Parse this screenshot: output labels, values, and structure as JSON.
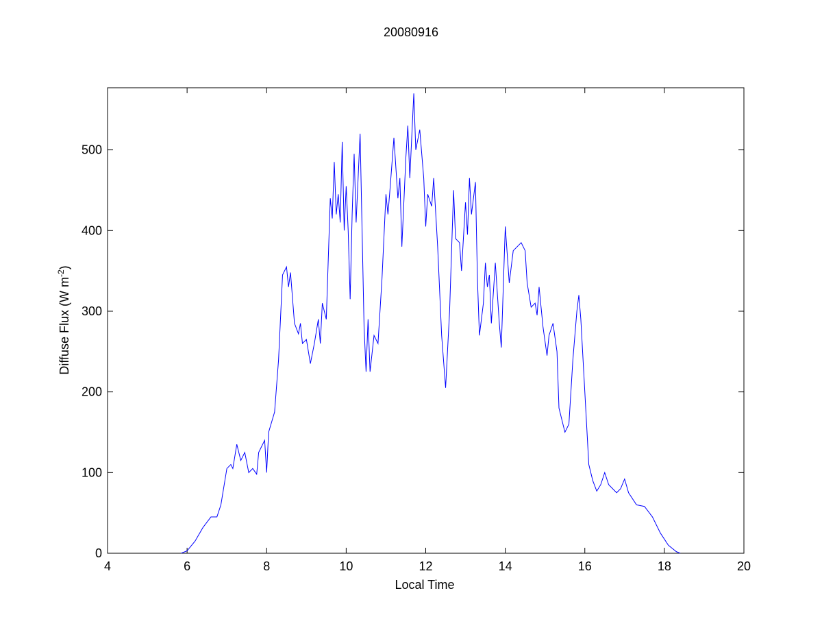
{
  "chart_data": {
    "type": "line",
    "title": "20080916",
    "xlabel": "Local Time",
    "ylabel": [
      "Diffuse Flux (W m",
      "-2",
      ")"
    ],
    "xlim": [
      4,
      20
    ],
    "xticks": [
      4,
      6,
      8,
      10,
      12,
      14,
      16,
      18,
      20
    ],
    "ylim": [
      0,
      577
    ],
    "yticks": [
      0,
      100,
      200,
      300,
      400,
      500
    ],
    "grid": false,
    "series": [
      {
        "color": "#0000ff",
        "x": [
          5.85,
          6.0,
          6.2,
          6.4,
          6.6,
          6.75,
          6.85,
          6.95,
          7.0,
          7.1,
          7.15,
          7.25,
          7.35,
          7.45,
          7.55,
          7.65,
          7.75,
          7.8,
          7.95,
          8.0,
          8.05,
          8.2,
          8.3,
          8.4,
          8.5,
          8.55,
          8.6,
          8.7,
          8.8,
          8.85,
          8.9,
          9.0,
          9.1,
          9.2,
          9.3,
          9.35,
          9.4,
          9.5,
          9.6,
          9.65,
          9.7,
          9.75,
          9.8,
          9.85,
          9.9,
          9.95,
          10.0,
          10.05,
          10.1,
          10.15,
          10.2,
          10.25,
          10.35,
          10.45,
          10.5,
          10.55,
          10.6,
          10.7,
          10.8,
          10.9,
          11.0,
          11.05,
          11.1,
          11.2,
          11.3,
          11.35,
          11.4,
          11.5,
          11.55,
          11.6,
          11.7,
          11.75,
          11.85,
          11.95,
          12.0,
          12.05,
          12.15,
          12.2,
          12.3,
          12.4,
          12.5,
          12.6,
          12.7,
          12.75,
          12.85,
          12.9,
          13.0,
          13.05,
          13.1,
          13.15,
          13.25,
          13.3,
          13.35,
          13.45,
          13.5,
          13.55,
          13.6,
          13.65,
          13.75,
          13.85,
          13.9,
          14.0,
          14.1,
          14.2,
          14.3,
          14.4,
          14.5,
          14.55,
          14.65,
          14.75,
          14.8,
          14.85,
          14.95,
          15.05,
          15.1,
          15.2,
          15.3,
          15.35,
          15.5,
          15.6,
          15.7,
          15.8,
          15.85,
          15.9,
          16.0,
          16.1,
          16.2,
          16.3,
          16.4,
          16.5,
          16.6,
          16.7,
          16.8,
          16.9,
          17.0,
          17.1,
          17.3,
          17.5,
          17.7,
          17.9,
          18.1,
          18.3,
          18.4
        ],
        "values": [
          0,
          3,
          15,
          32,
          45,
          45,
          60,
          90,
          105,
          110,
          105,
          135,
          115,
          125,
          100,
          105,
          98,
          125,
          140,
          100,
          150,
          175,
          240,
          345,
          355,
          330,
          348,
          285,
          272,
          285,
          260,
          265,
          235,
          260,
          290,
          260,
          310,
          290,
          440,
          415,
          485,
          420,
          445,
          410,
          510,
          400,
          455,
          400,
          315,
          420,
          495,
          410,
          520,
          280,
          225,
          290,
          225,
          270,
          260,
          340,
          445,
          420,
          450,
          515,
          440,
          465,
          380,
          490,
          530,
          465,
          570,
          500,
          525,
          465,
          405,
          445,
          430,
          465,
          380,
          270,
          205,
          300,
          450,
          390,
          385,
          350,
          435,
          395,
          465,
          420,
          460,
          340,
          270,
          310,
          360,
          330,
          345,
          285,
          360,
          285,
          255,
          405,
          335,
          375,
          380,
          385,
          375,
          335,
          305,
          310,
          295,
          330,
          280,
          245,
          270,
          285,
          250,
          180,
          150,
          160,
          240,
          300,
          320,
          290,
          200,
          110,
          90,
          77,
          85,
          100,
          85,
          80,
          75,
          80,
          92,
          75,
          60,
          58,
          45,
          25,
          10,
          2,
          0
        ]
      }
    ]
  }
}
